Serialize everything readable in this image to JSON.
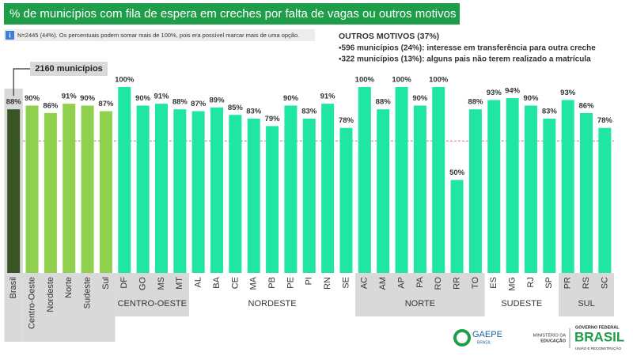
{
  "header": {
    "title": "% de municípios com fila de espera em creches por falta de vagas ou outros motivos"
  },
  "note": {
    "icon": "i",
    "text": "N=2445 (44%). Os percentuais podem somar mais de 100%, pois era possível marcar mais de uma opção."
  },
  "outros": {
    "title": "OUTROS MOTIVOS (37%)",
    "items": [
      "▪596 municípios (24%): interesse em transferência para outra creche",
      "▪322 municípios (13%): alguns pais não terem realizado a matrícula"
    ]
  },
  "chart_data": {
    "type": "bar",
    "categories": [
      "Brasil",
      "Centro-Oeste",
      "Nordeste",
      "Norte",
      "Sudeste",
      "Sul",
      "DF",
      "GO",
      "MS",
      "MT",
      "AL",
      "BA",
      "CE",
      "MA",
      "PB",
      "PE",
      "PI",
      "RN",
      "SE",
      "AC",
      "AM",
      "AP",
      "PA",
      "RO",
      "RR",
      "TO",
      "ES",
      "MG",
      "RJ",
      "SP",
      "PR",
      "RS",
      "SC"
    ],
    "values": [
      88,
      90,
      86,
      91,
      90,
      87,
      100,
      90,
      91,
      88,
      87,
      89,
      85,
      83,
      79,
      90,
      83,
      91,
      78,
      100,
      88,
      100,
      90,
      100,
      50,
      88,
      93,
      94,
      90,
      83,
      93,
      86,
      78
    ],
    "value_labels": [
      "88%",
      "90%",
      "86%",
      "91%",
      "90%",
      "87%",
      "100%",
      "90%",
      "91%",
      "88%",
      "87%",
      "89%",
      "85%",
      "83%",
      "79%",
      "90%",
      "83%",
      "91%",
      "78%",
      "100%",
      "88%",
      "100%",
      "90%",
      "100%",
      "50%",
      "88%",
      "93%",
      "94%",
      "90%",
      "83%",
      "93%",
      "86%",
      "78%"
    ],
    "colors": {
      "total": "#375623",
      "region": "#8fd14f",
      "state": "#1fe6a2"
    },
    "ylim": [
      0,
      100
    ],
    "reference_line": 71,
    "callout": "2160 municípios",
    "groups": [
      {
        "label": "CENTRO-OESTE",
        "members": [
          "DF",
          "GO",
          "MS",
          "MT"
        ]
      },
      {
        "label": "NORDESTE",
        "members": [
          "AL",
          "BA",
          "CE",
          "MA",
          "PB",
          "PE",
          "PI",
          "RN",
          "SE"
        ]
      },
      {
        "label": "NORTE",
        "members": [
          "AC",
          "AM",
          "AP",
          "PA",
          "RO",
          "RR",
          "TO"
        ]
      },
      {
        "label": "SUDESTE",
        "members": [
          "ES",
          "MG",
          "RJ",
          "SP"
        ]
      },
      {
        "label": "SUL",
        "members": [
          "PR",
          "RS",
          "SC"
        ]
      }
    ]
  },
  "footer": {
    "gaepe": "GAEPE",
    "gaepe_sub": "BRASIL",
    "mec": [
      "MINISTÉRIO DA",
      "EDUCAÇÃO"
    ],
    "gov": "GOVERNO FEDERAL",
    "brasil": "BRASIL",
    "gov_sub": "UNIÃO E RECONSTRUÇÃO"
  }
}
